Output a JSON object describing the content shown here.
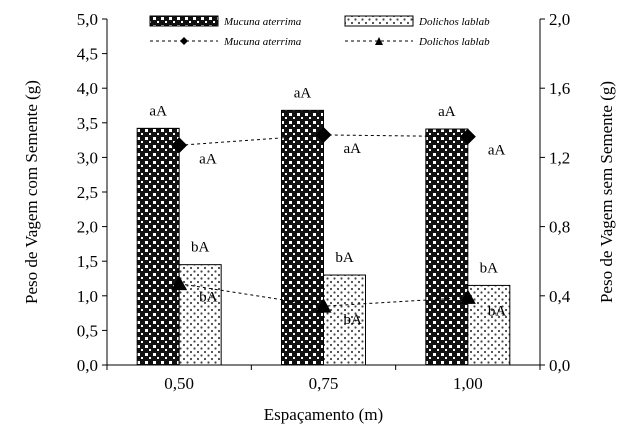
{
  "chart_data": {
    "type": "bar",
    "categories": [
      "0,50",
      "0,75",
      "1,00"
    ],
    "xlabel": "Espaçamento (m)",
    "ylabel": "Peso de Vagem com Semente (g)",
    "y2label": "Peso de Vagem sem Semente (g)",
    "ylim": [
      0,
      5
    ],
    "y2lim": [
      0,
      2
    ],
    "yticks": [
      "0,0",
      "0,5",
      "1,0",
      "1,5",
      "2,0",
      "2,5",
      "3,0",
      "3,5",
      "4,0",
      "4,5",
      "5,0"
    ],
    "y2ticks": [
      "0,0",
      "0,4",
      "0,8",
      "1,2",
      "1,6",
      "2,0"
    ],
    "grid": false,
    "legend_position": "top",
    "bar_series": [
      {
        "name": "Mucuna aterrima",
        "values": [
          3.42,
          3.68,
          3.41
        ],
        "labels": [
          "aA",
          "aA",
          "aA"
        ],
        "pattern": "checker-dark"
      },
      {
        "name": "Dolichos lablab",
        "values": [
          1.45,
          1.3,
          1.15
        ],
        "labels": [
          "bA",
          "bA",
          "bA"
        ],
        "pattern": "dots-light"
      }
    ],
    "line_series": [
      {
        "name": "Mucuna aterrima",
        "axis": "right",
        "marker": "diamond",
        "values": [
          1.27,
          1.33,
          1.32
        ],
        "labels": [
          "aA",
          "aA",
          "aA"
        ]
      },
      {
        "name": "Dolichos lablab",
        "axis": "right",
        "marker": "triangle",
        "values": [
          0.47,
          0.34,
          0.39
        ],
        "labels": [
          "bA",
          "bA",
          "bA"
        ]
      }
    ]
  }
}
